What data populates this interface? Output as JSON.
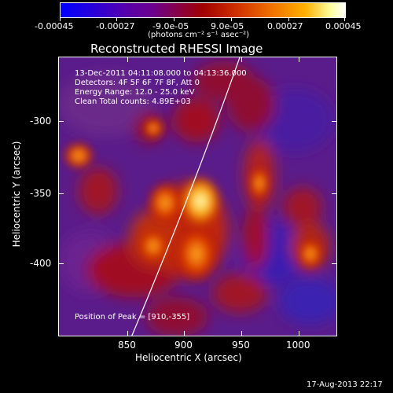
{
  "colorbar": {
    "ticks": [
      "-0.00045",
      "-0.00027",
      "-9.0e-05",
      "9.0e-05",
      "0.00027",
      "0.00045"
    ],
    "unit_label": "(photons cm⁻² s⁻¹ asec⁻²)",
    "colors": [
      "#0000ff",
      "#6a0090",
      "#a00000",
      "#f07000",
      "#ffffff"
    ]
  },
  "title": "Reconstructed RHESSI Image",
  "info": {
    "time_range": "13-Dec-2011 04:11:08.000 to 04:13:36.000",
    "detectors": "Detectors: 4F 5F 6F 7F 8F, Att 0",
    "energy": "Energy Range: 12.0 - 25.0 keV",
    "clean": "Clean     Total counts: 4.89E+03",
    "peak": "Position of Peak = [910,-355]"
  },
  "axes": {
    "xlabel": "Heliocentric X (arcsec)",
    "ylabel": "Heliocentric Y (arcsec)",
    "xticks": [
      "850",
      "900",
      "950",
      "1000"
    ],
    "yticks": [
      "-300",
      "-350",
      "-400"
    ]
  },
  "footer_date": "17-Aug-2013 22:17"
}
